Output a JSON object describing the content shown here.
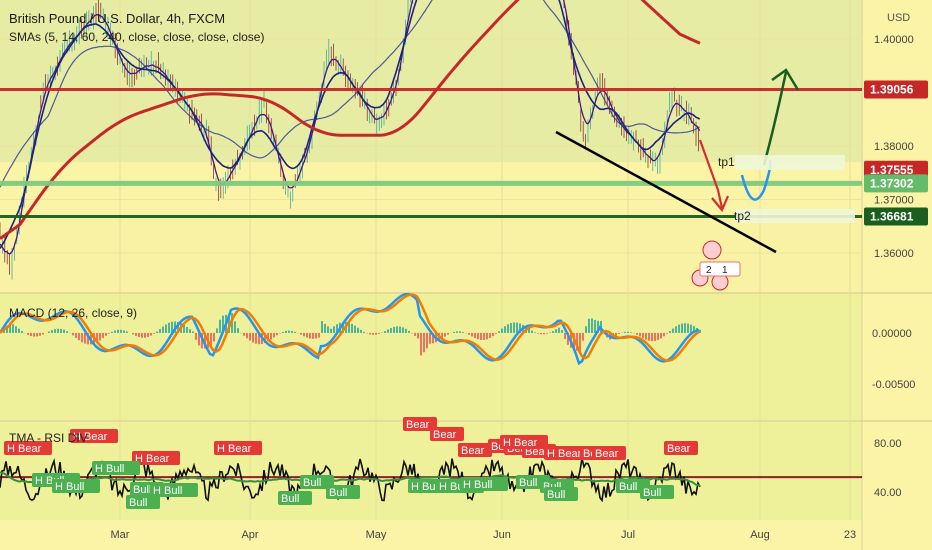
{
  "header": {
    "title": "British Pound / U.S. Dollar, 4h, FXCM",
    "indicator": "SMAs (5, 14, 60, 240, close, close, close, close)"
  },
  "currency": "USD",
  "chart_data": [
    {
      "type": "line",
      "name": "price",
      "title": "British Pound / U.S. Dollar, 4h, FXCM",
      "x_ticks": [
        "Mar",
        "Apr",
        "May",
        "Jun",
        "Jul",
        "Aug",
        "23"
      ],
      "y_ticks": [
        "1.40000",
        "1.38000",
        "1.37000",
        "1.36000"
      ],
      "ylim": [
        1.3527,
        1.4073
      ],
      "price_labels": [
        {
          "value": 1.39056,
          "text": "1.39056",
          "color": "#c62828"
        },
        {
          "value": 1.37555,
          "text": "1.37555",
          "color": "#c62828"
        },
        {
          "value": 1.37302,
          "text": "1.37302",
          "color": "#66bb6a"
        },
        {
          "value": 1.36681,
          "text": "1.36681",
          "color": "#1b5e20"
        }
      ],
      "horizontal_levels": [
        {
          "value": 1.39056,
          "color": "#c62828"
        },
        {
          "value": 1.37302,
          "color": "#7fc97f"
        },
        {
          "value": 1.36681,
          "color": "#1b5e20"
        }
      ],
      "annotations": [
        "tp1",
        "tp2"
      ]
    },
    {
      "type": "line",
      "name": "macd",
      "title": "MACD (12, 26, close, 9)",
      "y_ticks": [
        "0.00000",
        "-0.00500"
      ],
      "ylim": [
        -0.0085,
        0.0038
      ]
    },
    {
      "type": "line",
      "name": "rsi",
      "title": "TMA - RSI DIV",
      "y_ticks": [
        "80.00",
        "40.00"
      ],
      "ylim": [
        17,
        97
      ],
      "level": 52,
      "bear_labels": [
        "H Bear",
        "H Bear",
        "H Bear",
        "H Bear",
        "Bear",
        "Bear",
        "Bear",
        "Bear",
        "Bear",
        "Bear",
        "H Bear",
        "Bear",
        "Bear",
        "H Bear",
        "Bear"
      ],
      "bull_labels": [
        "H Bull",
        "H Bull",
        "Bull",
        "Bull",
        "H Bull",
        "H Bull",
        "Bull",
        "Bull",
        "Bull",
        "H Bull",
        "H Bull",
        "H Bull",
        "Bull",
        "Bull",
        "Bull",
        "Bull",
        "Bull"
      ]
    }
  ],
  "events": {
    "flag_a": "2",
    "flag_b": "1"
  },
  "colors": {
    "bg_price": "#fbf3a6",
    "bg_price_green": "#d5e6a0",
    "bg_ind": "#eef19a",
    "sma_slow": "#c62828",
    "sma_mid": "#1a237e",
    "sma_fast": "#4a148c",
    "macd_line": "#2196f3",
    "signal_line": "#f57c00",
    "bull": "#4caf50",
    "bear": "#e53935"
  }
}
